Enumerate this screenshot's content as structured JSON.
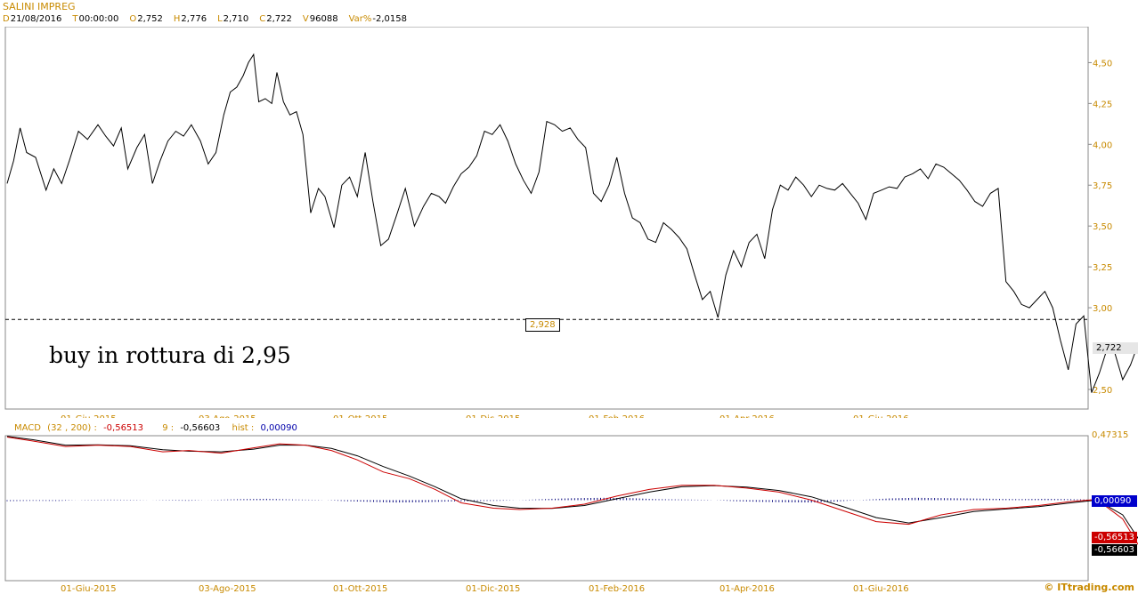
{
  "header": {
    "title": "SALINI IMPREG",
    "fields": [
      {
        "key": "D",
        "value": "21/08/2016"
      },
      {
        "key": "T",
        "value": "00:00:00"
      },
      {
        "key": "O",
        "value": "2,752"
      },
      {
        "key": "H",
        "value": "2,776"
      },
      {
        "key": "L",
        "value": "2,710"
      },
      {
        "key": "C",
        "value": "2,722"
      },
      {
        "key": "V",
        "value": "96088"
      },
      {
        "key": "Var%",
        "value": "-2,0158"
      }
    ]
  },
  "annotation": {
    "note": "buy in rottura di 2,95",
    "level_label": "2,928",
    "level_value": 2.928,
    "last_price_tag": "2,722"
  },
  "macd_legend": {
    "name": "MACD",
    "params": "(32 , 200) :",
    "macd_value": "-0,56513",
    "signal_label": "9 :",
    "signal_value": "-0,56603",
    "hist_label": "hist :",
    "hist_value": "0,00090"
  },
  "macd_tags": {
    "top": "0,47315",
    "hist": "0,00090",
    "macd": "-0,56513",
    "signal": "-0,56603"
  },
  "watermark": "© ITtrading.com",
  "colors": {
    "axis_label": "#c88a00",
    "price_line": "#000000",
    "macd_line": "#cc0000",
    "signal_line": "#000000",
    "histogram": "#00007a"
  },
  "chart_data": [
    {
      "type": "line",
      "x_tick_labels": [
        "01-Giu-2015",
        "03-Ago-2015",
        "01-Ott-2015",
        "01-Dic-2015",
        "01-Feb-2016",
        "01-Apr-2016",
        "01-Giu-2016"
      ],
      "y_tick_labels": [
        "4,50",
        "4,25",
        "4,00",
        "3,75",
        "3,50",
        "3,25",
        "3,00",
        "2,50"
      ],
      "y_ticks": [
        4.5,
        4.25,
        4.0,
        3.75,
        3.5,
        3.25,
        3.0,
        2.5
      ],
      "ylim": [
        2.38,
        4.72
      ],
      "x_range": [
        0,
        1
      ],
      "series": [
        {
          "x": [
            0.0,
            0.005,
            0.01,
            0.015,
            0.022,
            0.03,
            0.036,
            0.042,
            0.048,
            0.055,
            0.062,
            0.07,
            0.076,
            0.082,
            0.088,
            0.093,
            0.1,
            0.106,
            0.112,
            0.118,
            0.124,
            0.13,
            0.136,
            0.142,
            0.149,
            0.155,
            0.161,
            0.167,
            0.172,
            0.177,
            0.182,
            0.186,
            0.19,
            0.194,
            0.199,
            0.204,
            0.208,
            0.213,
            0.218,
            0.223,
            0.228,
            0.234,
            0.24,
            0.245,
            0.252,
            0.258,
            0.264,
            0.27,
            0.276,
            0.282,
            0.288,
            0.294,
            0.3,
            0.307,
            0.314,
            0.321,
            0.327,
            0.333,
            0.338,
            0.344,
            0.35,
            0.356,
            0.362,
            0.368,
            0.374,
            0.38,
            0.386,
            0.392,
            0.398,
            0.404,
            0.41,
            0.416,
            0.422,
            0.428,
            0.434,
            0.44,
            0.446,
            0.452,
            0.458,
            0.464,
            0.47,
            0.476,
            0.482,
            0.488,
            0.494,
            0.5,
            0.506,
            0.512,
            0.518,
            0.524,
            0.53,
            0.536,
            0.542,
            0.548,
            0.554,
            0.56,
            0.566,
            0.572,
            0.578,
            0.584,
            0.59,
            0.596,
            0.602,
            0.608,
            0.614,
            0.62,
            0.626,
            0.632,
            0.638,
            0.644,
            0.65,
            0.656,
            0.662,
            0.668,
            0.674,
            0.68,
            0.686,
            0.692,
            0.698,
            0.704,
            0.71,
            0.716,
            0.722,
            0.728,
            0.734,
            0.74,
            0.746,
            0.752,
            0.758,
            0.764,
            0.77,
            0.776,
            0.782,
            0.788,
            0.794,
            0.8,
            0.806,
            0.812,
            0.818,
            0.824,
            0.83,
            0.836,
            0.842,
            0.848,
            0.854,
            0.86,
            0.866,
            0.872,
            0.878,
            0.884,
            0.89,
            0.896,
            0.902
          ],
          "y": [
            3.76,
            3.9,
            4.1,
            3.95,
            3.92,
            3.72,
            3.85,
            3.76,
            3.9,
            4.08,
            4.03,
            4.12,
            4.05,
            3.99,
            4.1,
            3.85,
            3.98,
            4.06,
            3.76,
            3.9,
            4.02,
            4.08,
            4.05,
            4.12,
            4.02,
            3.88,
            3.95,
            4.18,
            4.32,
            4.35,
            4.42,
            4.5,
            4.55,
            4.26,
            4.28,
            4.25,
            4.44,
            4.26,
            4.18,
            4.2,
            4.06,
            3.58,
            3.73,
            3.68,
            3.49,
            3.75,
            3.8,
            3.68,
            3.95,
            3.65,
            3.38,
            3.42,
            3.56,
            3.73,
            3.5,
            3.62,
            3.7,
            3.68,
            3.64,
            3.74,
            3.82,
            3.86,
            3.93,
            4.08,
            4.06,
            4.12,
            4.02,
            3.88,
            3.78,
            3.7,
            3.83,
            4.14,
            4.12,
            4.08,
            4.1,
            4.03,
            3.98,
            3.7,
            3.65,
            3.75,
            3.92,
            3.7,
            3.55,
            3.52,
            3.42,
            3.4,
            3.52,
            3.48,
            3.43,
            3.36,
            3.2,
            3.05,
            3.1,
            2.94,
            3.2,
            3.35,
            3.25,
            3.4,
            3.45,
            3.3,
            3.6,
            3.75,
            3.72,
            3.8,
            3.75,
            3.68,
            3.75,
            3.73,
            3.72,
            3.76,
            3.7,
            3.64,
            3.54,
            3.7,
            3.72,
            3.74,
            3.73,
            3.8,
            3.82,
            3.85,
            3.79,
            3.88,
            3.86,
            3.82,
            3.78,
            3.72,
            3.65,
            3.62,
            3.7,
            3.73,
            3.16,
            3.1,
            3.02,
            3.0,
            3.05,
            3.1,
            3.0,
            2.8,
            2.62,
            2.9,
            2.95,
            2.48,
            2.6,
            2.75,
            2.72,
            2.56,
            2.65,
            2.78,
            2.83,
            2.8,
            2.81,
            2.76,
            2.72
          ]
        }
      ]
    },
    {
      "type": "line",
      "title": "MACD",
      "x_tick_labels": [
        "01-Giu-2015",
        "03-Ago-2015",
        "01-Ott-2015",
        "01-Dic-2015",
        "01-Feb-2016",
        "01-Apr-2016",
        "01-Giu-2016"
      ],
      "ylim": [
        -0.6,
        0.48
      ],
      "series": [
        {
          "name": "MACD (32 , 200)",
          "color": "#cc0000",
          "x": [
            0.0,
            0.02,
            0.045,
            0.07,
            0.095,
            0.12,
            0.14,
            0.165,
            0.19,
            0.21,
            0.23,
            0.25,
            0.27,
            0.29,
            0.31,
            0.33,
            0.35,
            0.375,
            0.395,
            0.42,
            0.445,
            0.47,
            0.495,
            0.52,
            0.545,
            0.57,
            0.595,
            0.62,
            0.645,
            0.67,
            0.695,
            0.72,
            0.745,
            0.77,
            0.795,
            0.82,
            0.84,
            0.86,
            0.875,
            0.89
          ],
          "y": [
            0.47,
            0.44,
            0.4,
            0.41,
            0.4,
            0.36,
            0.37,
            0.35,
            0.39,
            0.42,
            0.41,
            0.37,
            0.3,
            0.21,
            0.16,
            0.08,
            -0.02,
            -0.06,
            -0.07,
            -0.06,
            -0.03,
            0.03,
            0.08,
            0.11,
            0.11,
            0.09,
            0.06,
            0.0,
            -0.08,
            -0.16,
            -0.18,
            -0.11,
            -0.07,
            -0.06,
            -0.04,
            -0.01,
            0.005,
            -0.14,
            -0.38,
            -0.565
          ]
        },
        {
          "name": "Signal 9",
          "color": "#000000",
          "x": [
            0.0,
            0.02,
            0.045,
            0.07,
            0.095,
            0.12,
            0.14,
            0.165,
            0.19,
            0.21,
            0.23,
            0.25,
            0.27,
            0.29,
            0.31,
            0.33,
            0.35,
            0.375,
            0.395,
            0.42,
            0.445,
            0.47,
            0.495,
            0.52,
            0.545,
            0.57,
            0.595,
            0.62,
            0.645,
            0.67,
            0.695,
            0.72,
            0.745,
            0.77,
            0.795,
            0.82,
            0.84,
            0.86,
            0.875,
            0.89
          ],
          "y": [
            0.475,
            0.45,
            0.41,
            0.412,
            0.405,
            0.375,
            0.365,
            0.36,
            0.38,
            0.41,
            0.41,
            0.385,
            0.33,
            0.25,
            0.18,
            0.1,
            0.01,
            -0.04,
            -0.06,
            -0.062,
            -0.04,
            0.01,
            0.06,
            0.1,
            0.108,
            0.098,
            0.072,
            0.025,
            -0.05,
            -0.13,
            -0.17,
            -0.13,
            -0.085,
            -0.066,
            -0.048,
            -0.02,
            0.0,
            -0.11,
            -0.33,
            -0.566
          ]
        },
        {
          "name": "hist",
          "color": "#00007a",
          "type": "bar",
          "x": [
            0.0,
            0.02,
            0.04,
            0.06,
            0.08,
            0.1,
            0.12,
            0.14,
            0.16,
            0.18,
            0.2,
            0.22,
            0.24,
            0.26,
            0.28,
            0.3,
            0.32,
            0.34,
            0.36,
            0.38,
            0.4,
            0.42,
            0.44,
            0.46,
            0.48,
            0.5,
            0.52,
            0.54,
            0.56,
            0.58,
            0.6,
            0.62,
            0.64,
            0.66,
            0.68,
            0.7,
            0.72,
            0.74,
            0.76,
            0.78,
            0.8,
            0.82,
            0.84,
            0.86,
            0.88,
            0.89
          ],
          "y": [
            -0.03,
            -0.02,
            -0.025,
            0.01,
            0.015,
            0.01,
            -0.01,
            -0.02,
            0.01,
            0.03,
            0.04,
            0.02,
            0.01,
            -0.03,
            -0.05,
            -0.07,
            -0.06,
            -0.04,
            -0.03,
            -0.02,
            0.01,
            0.04,
            0.06,
            0.07,
            0.06,
            0.03,
            0.02,
            0.01,
            -0.03,
            -0.05,
            -0.06,
            -0.07,
            -0.04,
            0.01,
            0.05,
            0.07,
            0.06,
            0.05,
            0.04,
            0.03,
            0.04,
            0.03,
            0.01,
            -0.04,
            -0.02,
            0.001
          ]
        }
      ]
    }
  ]
}
